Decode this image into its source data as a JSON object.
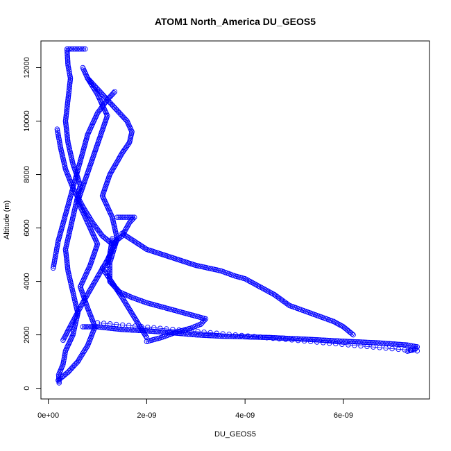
{
  "chart_data": {
    "type": "scatter",
    "title": "ATOM1 North_America DU_GEOS5",
    "xlabel": "DU_GEOS5",
    "ylabel": "Altitude (m)",
    "xlim": [
      -1.5e-10,
      7.75e-09
    ],
    "ylim": [
      -400,
      13000
    ],
    "x_ticks": [
      {
        "value": 0,
        "label": "0e+00"
      },
      {
        "value": 2e-09,
        "label": "2e-09"
      },
      {
        "value": 4e-09,
        "label": "4e-09"
      },
      {
        "value": 6e-09,
        "label": "6e-09"
      }
    ],
    "y_ticks": [
      {
        "value": 0,
        "label": "0"
      },
      {
        "value": 2000,
        "label": "2000"
      },
      {
        "value": 4000,
        "label": "4000"
      },
      {
        "value": 6000,
        "label": "6000"
      },
      {
        "value": 8000,
        "label": "8000"
      },
      {
        "value": 10000,
        "label": "10000"
      },
      {
        "value": 12000,
        "label": "12000"
      }
    ],
    "color": "#0000ff",
    "grid": false,
    "series": [
      {
        "points": [
          [
            2.2e-10,
            200
          ],
          [
            2.1e-10,
            500
          ],
          [
            3e-10,
            900
          ],
          [
            3.5e-10,
            1400
          ],
          [
            5e-10,
            2000
          ],
          [
            6e-10,
            2800
          ],
          [
            5e-10,
            3600
          ],
          [
            4e-10,
            4400
          ],
          [
            3.5e-10,
            5200
          ],
          [
            4.5e-10,
            6000
          ],
          [
            5.5e-10,
            6800
          ],
          [
            6.5e-10,
            7600
          ],
          [
            5e-10,
            8400
          ],
          [
            4e-10,
            9200
          ],
          [
            3.5e-10,
            10000
          ],
          [
            4e-10,
            10800
          ],
          [
            4.5e-10,
            11600
          ],
          [
            4e-10,
            12100
          ],
          [
            3.8e-10,
            12700
          ],
          [
            7.5e-10,
            12700
          ]
        ]
      },
      {
        "points": [
          [
            2e-10,
            300
          ],
          [
            4e-10,
            600
          ],
          [
            6e-10,
            1000
          ],
          [
            8e-10,
            1600
          ],
          [
            9.5e-10,
            2300
          ],
          [
            8e-10,
            3000
          ],
          [
            6.5e-10,
            3800
          ],
          [
            8.5e-10,
            4600
          ],
          [
            1e-09,
            5400
          ],
          [
            8e-10,
            6200
          ],
          [
            6e-10,
            7000
          ],
          [
            7.5e-10,
            7800
          ],
          [
            9e-10,
            8600
          ],
          [
            1.05e-09,
            9400
          ],
          [
            1.2e-09,
            10200
          ],
          [
            1e-09,
            11000
          ],
          [
            8e-10,
            11600
          ],
          [
            7e-10,
            12000
          ]
        ]
      },
      {
        "points": [
          [
            3e-10,
            1800
          ],
          [
            5e-10,
            2500
          ],
          [
            7e-10,
            3200
          ],
          [
            9.5e-10,
            4000
          ],
          [
            1.2e-09,
            4800
          ],
          [
            1.4e-09,
            5600
          ],
          [
            1.3e-09,
            6400
          ],
          [
            1.1e-09,
            7200
          ],
          [
            1.25e-09,
            8000
          ],
          [
            1.5e-09,
            8800
          ],
          [
            1.65e-09,
            9200
          ],
          [
            1.7e-09,
            9600
          ],
          [
            1.6e-09,
            10000
          ],
          [
            1.4e-09,
            10400
          ],
          [
            1.2e-09,
            10800
          ],
          [
            1e-09,
            11200
          ],
          [
            8e-10,
            11600
          ]
        ]
      },
      {
        "points": [
          [
            1e-10,
            4500
          ],
          [
            2e-10,
            5500
          ],
          [
            3.5e-10,
            6500
          ],
          [
            5e-10,
            7500
          ],
          [
            6.5e-10,
            8500
          ],
          [
            8e-10,
            9500
          ],
          [
            1e-09,
            10300
          ],
          [
            1.2e-09,
            10800
          ],
          [
            1.35e-09,
            11100
          ]
        ]
      },
      {
        "points": [
          [
            1.8e-10,
            9700
          ],
          [
            2.5e-10,
            9000
          ],
          [
            3.5e-10,
            8200
          ],
          [
            5e-10,
            7500
          ],
          [
            7e-10,
            6800
          ],
          [
            9e-10,
            6200
          ],
          [
            1.1e-09,
            5700
          ],
          [
            1.3e-09,
            5400
          ],
          [
            1.5e-09,
            5700
          ],
          [
            1.65e-09,
            6200
          ],
          [
            1.75e-09,
            6400
          ],
          [
            1.4e-09,
            6400
          ]
        ]
      },
      {
        "points": [
          [
            1.5e-09,
            5800
          ],
          [
            2e-09,
            5200
          ],
          [
            2.5e-09,
            4900
          ],
          [
            3e-09,
            4600
          ],
          [
            3.5e-09,
            4400
          ],
          [
            3.8e-09,
            4200
          ],
          [
            4e-09,
            4100
          ],
          [
            4.3e-09,
            3800
          ],
          [
            4.6e-09,
            3500
          ],
          [
            4.9e-09,
            3100
          ],
          [
            5.2e-09,
            2900
          ],
          [
            5.5e-09,
            2700
          ],
          [
            5.8e-09,
            2500
          ],
          [
            6e-09,
            2300
          ],
          [
            6.2e-09,
            2000
          ]
        ]
      },
      {
        "points": [
          [
            1.4e-09,
            5600
          ],
          [
            1.25e-09,
            4700
          ],
          [
            1.25e-09,
            4000
          ],
          [
            1.45e-09,
            3600
          ],
          [
            1.7e-09,
            3400
          ],
          [
            2e-09,
            3200
          ],
          [
            2.4e-09,
            3000
          ],
          [
            2.8e-09,
            2800
          ],
          [
            3.2e-09,
            2600
          ],
          [
            3.1e-09,
            2400
          ],
          [
            2.9e-09,
            2250
          ],
          [
            2.6e-09,
            2100
          ],
          [
            2.3e-09,
            1900
          ],
          [
            2e-09,
            1750
          ]
        ]
      },
      {
        "points": [
          [
            1.3e-09,
            5600
          ],
          [
            1.25e-09,
            5000
          ],
          [
            1.2e-09,
            4600
          ]
        ]
      },
      {
        "points": [
          [
            1.1e-09,
            4500
          ],
          [
            1.5e-09,
            3400
          ],
          [
            1.9e-09,
            2200
          ],
          [
            2e-09,
            1900
          ]
        ]
      },
      {
        "points": [
          [
            7e-10,
            2300
          ],
          [
            1e-09,
            2300
          ],
          [
            1.5e-09,
            2200
          ],
          [
            2e-09,
            2150
          ],
          [
            2.5e-09,
            2080
          ],
          [
            3e-09,
            2000
          ],
          [
            3.5e-09,
            1950
          ],
          [
            4.5e-09,
            1900
          ],
          [
            5.3e-09,
            1830
          ],
          [
            6e-09,
            1760
          ],
          [
            6.7e-09,
            1700
          ],
          [
            7.3e-09,
            1620
          ],
          [
            7.5e-09,
            1550
          ],
          [
            7.45e-09,
            1450
          ],
          [
            7.3e-09,
            1390
          ]
        ]
      },
      {
        "points": [
          [
            1e-09,
            2450
          ],
          [
            7.5e-09,
            1400
          ]
        ]
      }
    ]
  }
}
